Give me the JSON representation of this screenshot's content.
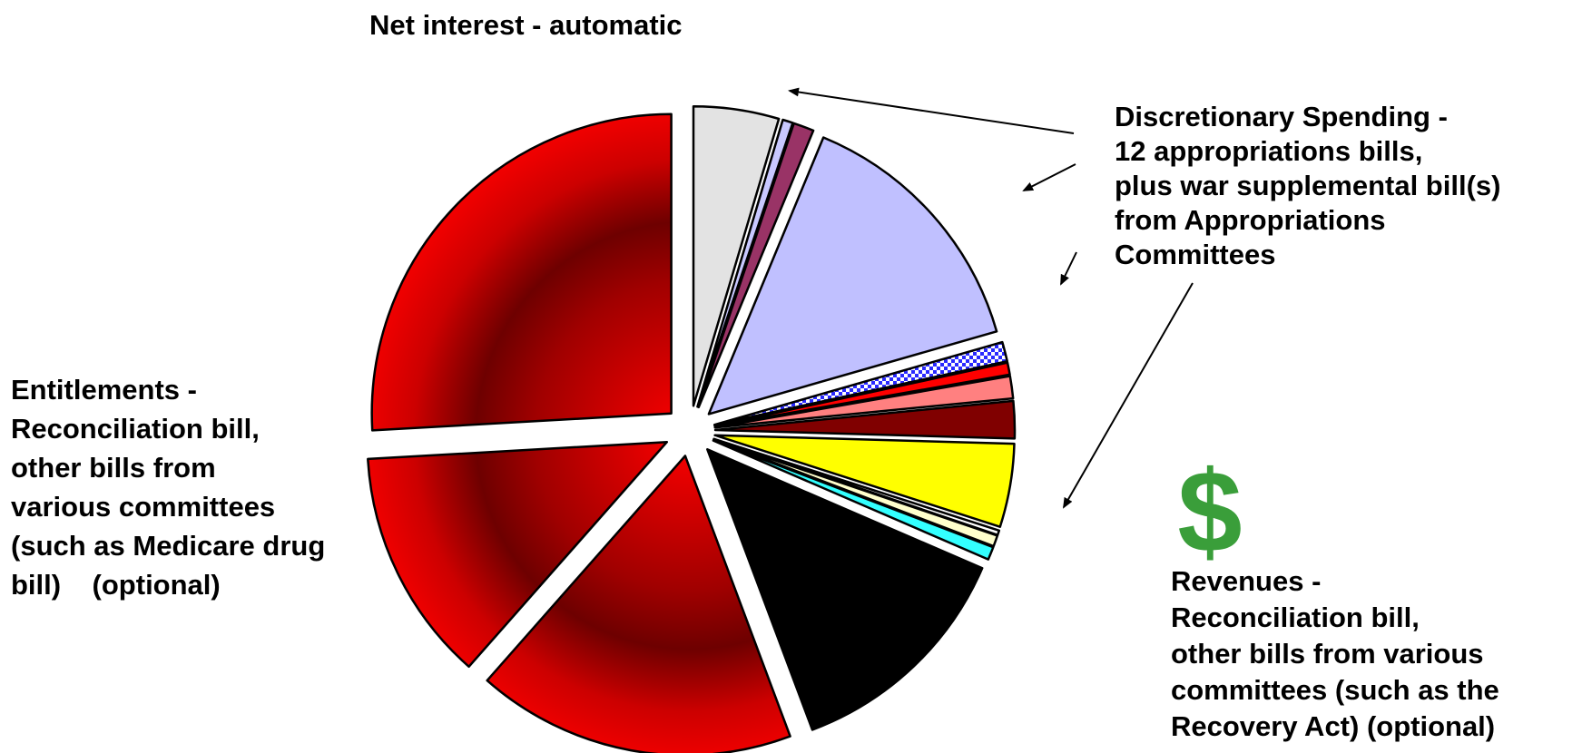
{
  "labels": {
    "net_interest": [
      "Net interest - automatic"
    ],
    "discretionary": [
      "Discretionary Spending -",
      "12 appropriations bills,",
      "plus war supplemental bill(s)",
      "from Appropriations",
      "Committees"
    ],
    "entitlements": [
      "Entitlements -",
      "Reconciliation bill,",
      "other bills from",
      "various committees",
      "(such as Medicare drug",
      "bill)    (optional)"
    ],
    "revenues": [
      "Revenues -",
      "Reconciliation bill,",
      "other bills from various",
      "committees (such as the",
      "Recovery Act) (optional)"
    ]
  },
  "icons": {
    "revenue_symbol": "$",
    "revenue_symbol_color": "#3a9e3a"
  },
  "chart_data": {
    "type": "pie",
    "title": "",
    "slices": [
      {
        "group": "net_interest",
        "value": 4.6,
        "fill": "#e3e3e3",
        "gradient": false
      },
      {
        "group": "discretionary",
        "value": 0.55,
        "fill": "#c8c8ff",
        "gradient": false
      },
      {
        "group": "discretionary",
        "value": 1.1,
        "fill": "#993366",
        "gradient": false
      },
      {
        "group": "discretionary",
        "value": 14.3,
        "fill": "#c0c0ff",
        "gradient": false
      },
      {
        "group": "discretionary",
        "value": 1.05,
        "fill": "#4a4aff",
        "gradient": false,
        "pattern": true
      },
      {
        "group": "discretionary",
        "value": 0.65,
        "fill": "#ff0000",
        "gradient": false
      },
      {
        "group": "discretionary",
        "value": 1.2,
        "fill": "#ff8080",
        "gradient": false
      },
      {
        "group": "discretionary",
        "value": 2.0,
        "fill": "#800000",
        "gradient": false
      },
      {
        "group": "discretionary",
        "value": 4.5,
        "fill": "#ffff00",
        "gradient": false
      },
      {
        "group": "discretionary",
        "value": 0.25,
        "fill": "#ffffff",
        "gradient": false
      },
      {
        "group": "discretionary",
        "value": 0.6,
        "fill": "#ffffcc",
        "gradient": false
      },
      {
        "group": "discretionary",
        "value": 0.7,
        "fill": "#33ffff",
        "gradient": false
      },
      {
        "group": "revenues",
        "value": 12.8,
        "fill": "#000000",
        "gradient": false
      },
      {
        "group": "entitlements",
        "value": 17.2,
        "fill": "#ff0000",
        "gradient": true
      },
      {
        "group": "entitlements",
        "value": 12.6,
        "fill": "#ff0000",
        "gradient": true
      },
      {
        "group": "entitlements",
        "value": 25.9,
        "fill": "#ff0000",
        "gradient": true
      }
    ]
  }
}
